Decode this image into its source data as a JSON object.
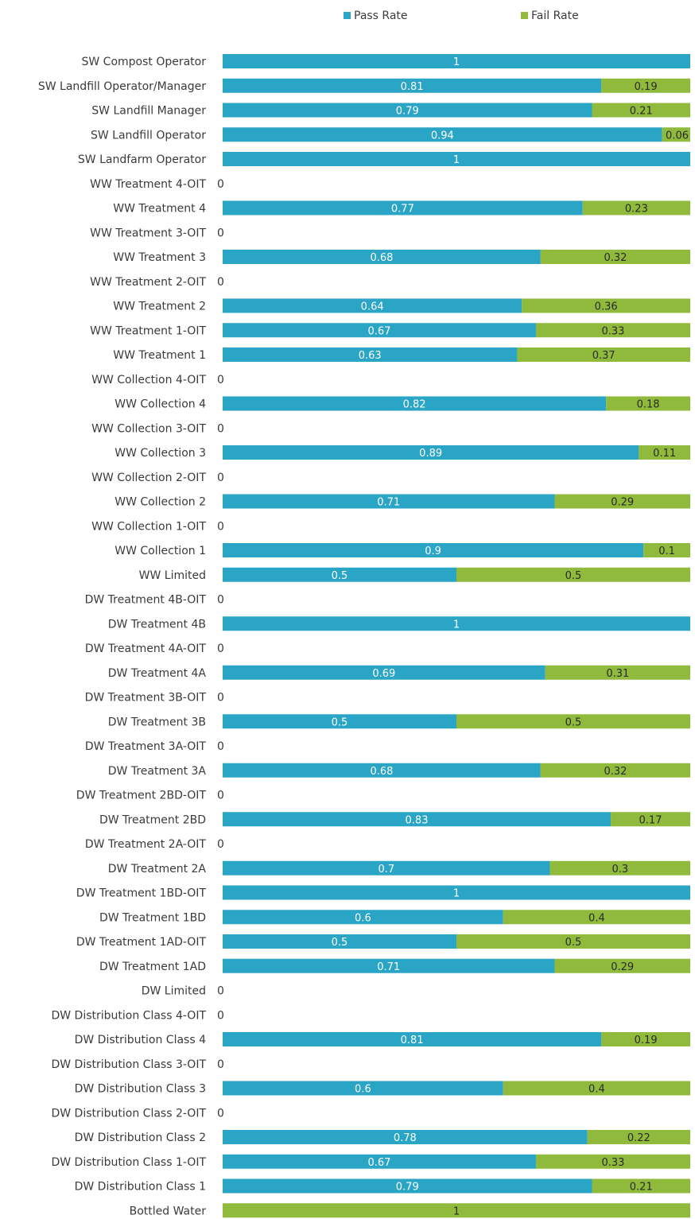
{
  "chart_data": {
    "type": "bar",
    "orientation": "horizontal",
    "stacked": true,
    "xlim": [
      0,
      1
    ],
    "grid": false,
    "legend_position": "top",
    "categories": [
      "SW Compost Operator",
      "SW Landfill Operator/Manager",
      "SW Landfill Manager",
      "SW Landfill Operator",
      "SW Landfarm Operator",
      "WW Treatment 4-OIT",
      "WW Treatment 4",
      "WW Treatment 3-OIT",
      "WW Treatment 3",
      "WW Treatment 2-OIT",
      "WW Treatment 2",
      "WW Treatment 1-OIT",
      "WW Treatment 1",
      "WW Collection 4-OIT",
      "WW Collection 4",
      "WW Collection 3-OIT",
      "WW Collection 3",
      "WW Collection 2-OIT",
      "WW Collection 2",
      "WW Collection 1-OIT",
      "WW Collection 1",
      "WW Limited",
      "DW Treatment 4B-OIT",
      "DW Treatment 4B",
      "DW Treatment 4A-OIT",
      "DW Treatment 4A",
      "DW Treatment 3B-OIT",
      "DW Treatment 3B",
      "DW Treatment 3A-OIT",
      "DW Treatment 3A",
      "DW Treatment 2BD-OIT",
      "DW Treatment 2BD",
      "DW Treatment 2A-OIT",
      "DW Treatment 2A",
      "DW Treatment 1BD-OIT",
      "DW Treatment 1BD",
      "DW Treatment 1AD-OIT",
      "DW Treatment 1AD",
      "DW Limited",
      "DW Distribution Class 4-OIT",
      "DW Distribution Class 4",
      "DW Distribution Class 3-OIT",
      "DW Distribution Class 3",
      "DW Distribution Class 2-OIT",
      "DW Distribution Class 2",
      "DW Distribution Class 1-OIT",
      "DW Distribution Class 1",
      "Bottled Water"
    ],
    "series": [
      {
        "name": "Pass Rate",
        "color": "#2aa5c6",
        "values": [
          1,
          0.81,
          0.79,
          0.94,
          1,
          0,
          0.77,
          0,
          0.68,
          0,
          0.64,
          0.67,
          0.63,
          0,
          0.82,
          0,
          0.89,
          0,
          0.71,
          0,
          0.9,
          0.5,
          0,
          1,
          0,
          0.69,
          0,
          0.5,
          0,
          0.68,
          0,
          0.83,
          0,
          0.7,
          1,
          0.6,
          0.5,
          0.71,
          0,
          0,
          0.81,
          0,
          0.6,
          0,
          0.78,
          0.67,
          0.79,
          null
        ]
      },
      {
        "name": "Fail Rate",
        "color": "#8fba3b",
        "values": [
          null,
          0.19,
          0.21,
          0.06,
          null,
          null,
          0.23,
          null,
          0.32,
          null,
          0.36,
          0.33,
          0.37,
          null,
          0.18,
          null,
          0.11,
          null,
          0.29,
          null,
          0.1,
          0.5,
          null,
          null,
          null,
          0.31,
          null,
          0.5,
          null,
          0.32,
          null,
          0.17,
          null,
          0.3,
          null,
          0.4,
          0.5,
          0.29,
          null,
          null,
          0.19,
          null,
          0.4,
          null,
          0.22,
          0.33,
          0.21,
          1
        ]
      }
    ]
  }
}
